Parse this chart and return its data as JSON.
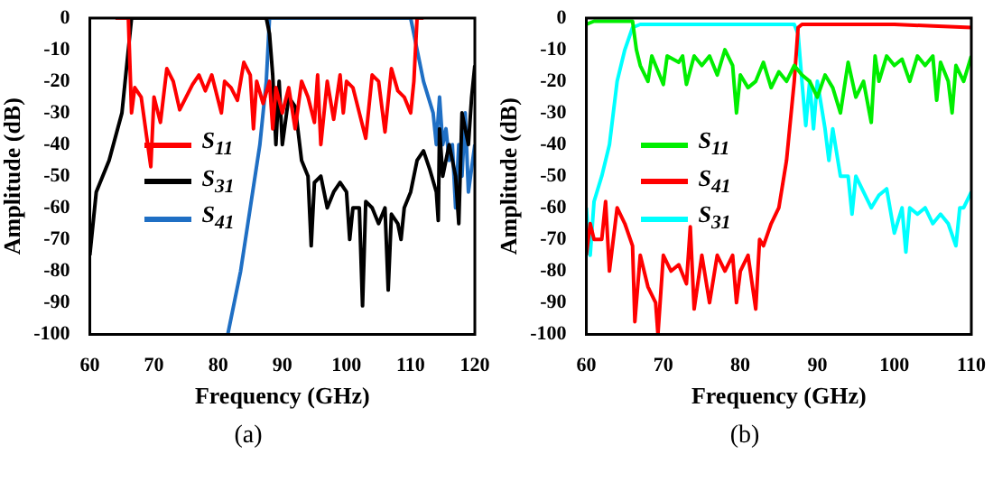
{
  "chart_data": [
    {
      "type": "line",
      "title": "(a)",
      "xlabel": "Frequency (GHz)",
      "ylabel": "Amplitude (dB)",
      "xlim": [
        60,
        120
      ],
      "xticks": [
        60,
        70,
        80,
        90,
        100,
        110,
        120
      ],
      "ylim": [
        -100,
        0
      ],
      "yticks": [
        -100,
        -90,
        -80,
        -70,
        -60,
        -50,
        -40,
        -30,
        -20,
        -10,
        0
      ],
      "grid": false,
      "legend": "left",
      "marker": "none",
      "line_style": "solid",
      "series": [
        {
          "name": "S$_{11}$",
          "color": "#ff0000",
          "x": [
            64,
            66,
            66.5,
            67,
            68,
            69.5,
            70,
            71,
            72,
            73,
            74,
            75,
            76,
            77,
            78,
            79,
            80.5,
            81,
            82,
            83,
            84,
            85,
            85.5,
            86,
            87,
            88,
            88.5,
            89,
            90,
            91,
            92,
            93,
            94,
            95,
            95.5,
            96,
            97,
            98,
            99,
            99.5,
            100,
            101,
            102,
            103,
            104,
            105,
            106,
            107,
            108,
            109,
            110,
            110.5,
            111,
            112
          ],
          "values": [
            0,
            0,
            -30,
            -22,
            -25,
            -47,
            -25,
            -33,
            -16,
            -20,
            -29,
            -25,
            -21,
            -18,
            -23,
            -18,
            -30,
            -20,
            -22,
            -26,
            -14,
            -18,
            -35,
            -20,
            -27,
            -20,
            -35,
            -22,
            -30,
            -22,
            -35,
            -20,
            -25,
            -33,
            -18,
            -40,
            -20,
            -32,
            -18,
            -30,
            -20,
            -22,
            -30,
            -38,
            -18,
            -20,
            -36,
            -16,
            -23,
            -25,
            -30,
            -20,
            0,
            0
          ]
        },
        {
          "name": "S$_{31}$",
          "color": "#000000",
          "x": [
            60,
            61,
            63,
            65,
            66,
            66.5,
            87.5,
            88,
            88.5,
            89,
            89.5,
            90,
            91,
            92,
            93,
            94,
            94.5,
            95,
            96,
            97,
            98,
            99,
            100,
            100.5,
            101,
            102,
            102.5,
            103,
            104,
            105,
            106,
            106.5,
            107,
            108,
            108.5,
            109,
            110,
            111,
            112,
            113,
            114,
            114.3,
            114.5,
            115,
            116,
            117,
            117.5,
            118,
            119,
            119.5,
            120
          ],
          "values": [
            -75,
            -55,
            -45,
            -30,
            -10,
            0,
            0,
            -5,
            -18,
            -40,
            -20,
            -40,
            -25,
            -28,
            -45,
            -50,
            -72,
            -52,
            -50,
            -60,
            -55,
            -52,
            -55,
            -70,
            -60,
            -60,
            -91,
            -58,
            -60,
            -65,
            -60,
            -86,
            -62,
            -65,
            -70,
            -60,
            -55,
            -45,
            -42,
            -48,
            -55,
            -64,
            -35,
            -50,
            -40,
            -50,
            -65,
            -30,
            -40,
            -25,
            -15
          ]
        },
        {
          "name": "S$_{41}$",
          "color": "#1f6fc4",
          "x": [
            81.5,
            83.5,
            85,
            86.5,
            87.5,
            88,
            110,
            111,
            112,
            113.5,
            114,
            114.5,
            115,
            115.5,
            116,
            116.5,
            117,
            117.5,
            118,
            118.5,
            119,
            120
          ],
          "values": [
            -100,
            -80,
            -60,
            -40,
            -20,
            0,
            0,
            -10,
            -20,
            -30,
            -40,
            -25,
            -40,
            -35,
            -45,
            -40,
            -60,
            -40,
            -50,
            -30,
            -55,
            -40
          ]
        }
      ]
    },
    {
      "type": "line",
      "title": "(b)",
      "xlabel": "Frequency (GHz)",
      "ylabel": "Amplitude (dB)",
      "xlim": [
        60,
        110
      ],
      "xticks": [
        60,
        70,
        80,
        90,
        100,
        110
      ],
      "ylim": [
        -100,
        0
      ],
      "yticks": [
        -100,
        -90,
        -80,
        -70,
        -60,
        -50,
        -40,
        -30,
        -20,
        -10,
        0
      ],
      "grid": false,
      "legend": "left",
      "marker": "none",
      "line_style": "solid",
      "series": [
        {
          "name": "S$_{11}$",
          "color": "#00ee00",
          "x": [
            60,
            61,
            63,
            65,
            66,
            66.5,
            67,
            68,
            68.5,
            69,
            70,
            70.5,
            72,
            72.5,
            73,
            74,
            75,
            76,
            77,
            78,
            79,
            79.5,
            80,
            81,
            82,
            83,
            84,
            85,
            86,
            87,
            88,
            89,
            90,
            91,
            92,
            93,
            94,
            95,
            96,
            97,
            97.5,
            98,
            99,
            100,
            101,
            102,
            103,
            104,
            105,
            105.5,
            106,
            107,
            107.5,
            108,
            109,
            110
          ],
          "values": [
            -2,
            -1,
            -1,
            -1,
            -1,
            -10,
            -15,
            -20,
            -12,
            -15,
            -21,
            -12,
            -14,
            -12,
            -21,
            -12,
            -15,
            -12,
            -18,
            -10,
            -15,
            -30,
            -18,
            -22,
            -20,
            -14,
            -22,
            -17,
            -20,
            -15,
            -18,
            -20,
            -25,
            -18,
            -22,
            -30,
            -14,
            -25,
            -20,
            -33,
            -12,
            -20,
            -12,
            -15,
            -13,
            -20,
            -12,
            -15,
            -12,
            -26,
            -14,
            -20,
            -30,
            -15,
            -20,
            -12
          ]
        },
        {
          "name": "S$_{41}$",
          "color": "#ff0000",
          "x": [
            60,
            60.5,
            61,
            62,
            62.5,
            63,
            64,
            65,
            66,
            66.3,
            67,
            68,
            69,
            69.3,
            70,
            71,
            72,
            73,
            73.5,
            74,
            75,
            76,
            77,
            78,
            79,
            79.5,
            80,
            81,
            82,
            82.5,
            83,
            84,
            85,
            86,
            87,
            87.5,
            88,
            90,
            95,
            100,
            105,
            110
          ],
          "values": [
            -75,
            -65,
            -70,
            -70,
            -58,
            -80,
            -60,
            -65,
            -72,
            -96,
            -75,
            -85,
            -90,
            -100,
            -75,
            -80,
            -78,
            -84,
            -66,
            -92,
            -75,
            -90,
            -75,
            -80,
            -75,
            -90,
            -80,
            -75,
            -92,
            -70,
            -72,
            -65,
            -60,
            -45,
            -20,
            -3,
            -2,
            -2,
            -2,
            -2,
            -2.5,
            -3
          ]
        },
        {
          "name": "S$_{31}$",
          "color": "#00ffff",
          "x": [
            60,
            60.5,
            61,
            62,
            62.5,
            63,
            64,
            65,
            66,
            67,
            70,
            75,
            80,
            85,
            87,
            87.5,
            88,
            88.5,
            89,
            89.5,
            90,
            91,
            91.5,
            92,
            93,
            94,
            94.5,
            95,
            96,
            97,
            98,
            99,
            100,
            101,
            101.5,
            102,
            103,
            104,
            105,
            106,
            107,
            108,
            108.5,
            109,
            110
          ],
          "values": [
            -60,
            -75,
            -58,
            -50,
            -45,
            -40,
            -20,
            -10,
            -3,
            -2,
            -2,
            -2,
            -2,
            -2,
            -2,
            -5,
            -20,
            -34,
            -20,
            -35,
            -20,
            -35,
            -45,
            -35,
            -50,
            -50,
            -62,
            -50,
            -55,
            -60,
            -56,
            -54,
            -68,
            -60,
            -74,
            -60,
            -62,
            -60,
            -65,
            -62,
            -65,
            -72,
            -60,
            -60,
            -55
          ]
        }
      ]
    }
  ]
}
